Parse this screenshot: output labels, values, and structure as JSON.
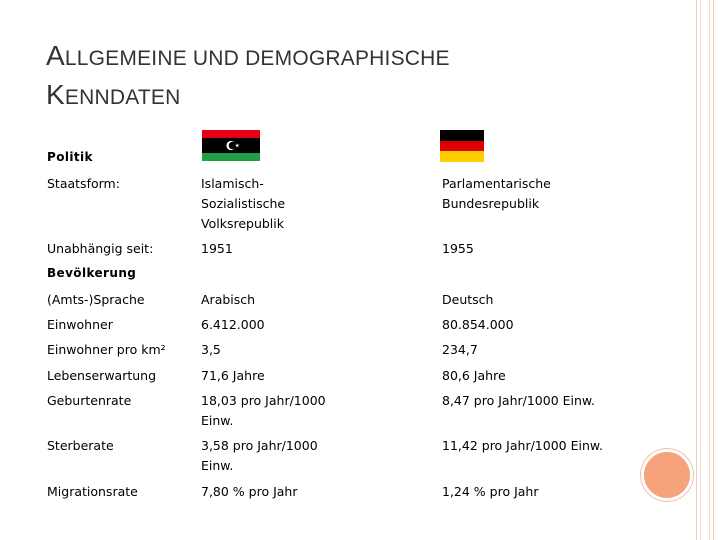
{
  "title": {
    "line1_initial": "A",
    "line1_rest": "LLGEMEINE UND DEMOGRAPHISCHE",
    "line2_initial": "K",
    "line2_rest": "ENNDATEN"
  },
  "colors": {
    "libya_red": "#e70013",
    "libya_black": "#000000",
    "libya_green": "#239e46",
    "germany_black": "#000000",
    "germany_red": "#dd0000",
    "germany_gold": "#ffce00",
    "accent": "#f6a37c"
  },
  "sections": {
    "politik": "Politik",
    "bevoelkerung": "Bevölkerung"
  },
  "rows": {
    "staatsform": {
      "label": "Staatsform:",
      "libya": [
        "Islamisch-",
        "Sozialistische",
        "Volksrepublik"
      ],
      "germany": [
        "Parlamentarische",
        "Bundesrepublik"
      ]
    },
    "unabhaengig": {
      "label": "Unabhängig seit:",
      "libya": "1951",
      "germany": "1955"
    },
    "sprache": {
      "label": "(Amts-)Sprache",
      "libya": "Arabisch",
      "germany": "Deutsch"
    },
    "einwohner": {
      "label": "Einwohner",
      "libya": "6.412.000",
      "germany": "80.854.000"
    },
    "dichte": {
      "label": "Einwohner pro km²",
      "libya": "3,5",
      "germany": "234,7"
    },
    "lebenserwartung": {
      "label": "Lebenserwartung",
      "libya": "71,6 Jahre",
      "germany": "80,6 Jahre"
    },
    "geburtenrate": {
      "label": "Geburtenrate",
      "libya": [
        "18,03 pro Jahr/1000",
        "Einw."
      ],
      "germany": "8,47 pro Jahr/1000 Einw."
    },
    "sterberate": {
      "label": "Sterberate",
      "libya": [
        "3,58 pro Jahr/1000",
        "Einw."
      ],
      "germany": "11,42 pro Jahr/1000 Einw."
    },
    "migrationsrate": {
      "label": "Migrationsrate",
      "libya": "7,80 % pro Jahr",
      "germany": "1,24 % pro Jahr"
    }
  }
}
